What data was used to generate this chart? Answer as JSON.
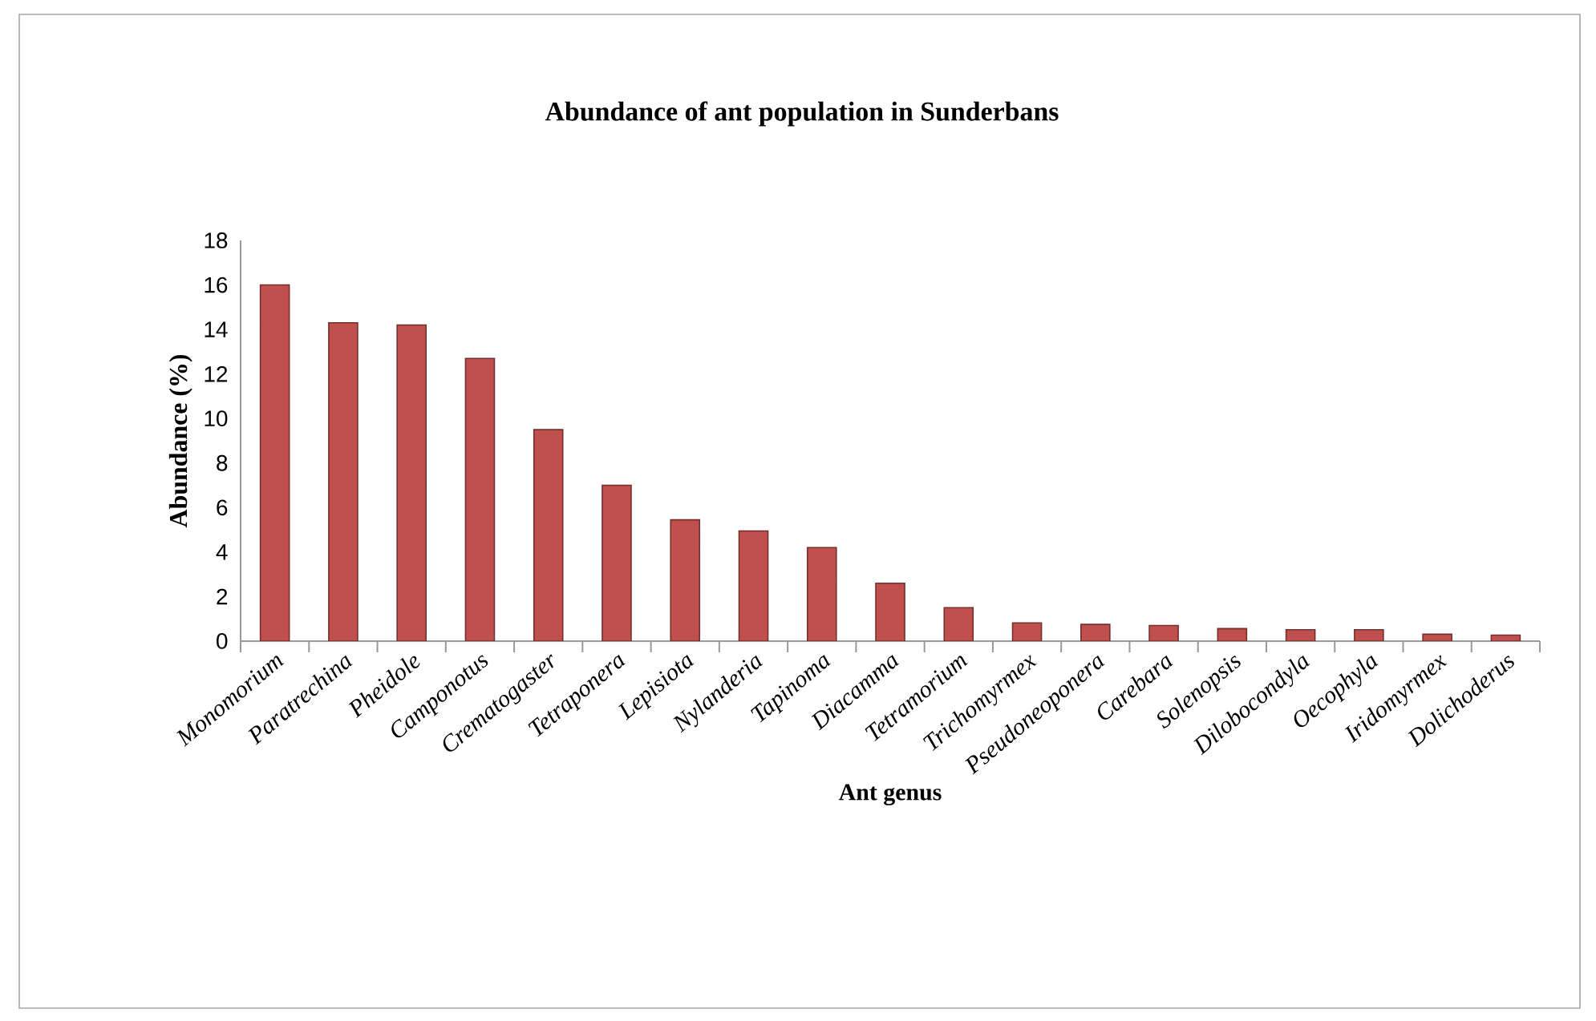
{
  "chart_data": {
    "type": "bar",
    "title": "Abundance of ant population in Sunderbans",
    "xlabel": "Ant genus",
    "ylabel": "Abundance (%)",
    "categories": [
      "Monomorium",
      "Paratrechina",
      "Pheidole",
      "Camponotus",
      "Crematogaster",
      "Tetraponera",
      "Lepisiota",
      "Nylanderia",
      "Tapinoma",
      "Diacamma",
      "Tetramorium",
      "Trichomyrmex",
      "Pseudoneoponera",
      "Carebara",
      "Solenopsis",
      "Dilobocondyla",
      "Oecophyla",
      "Iridomyrmex",
      "Dolichoderus"
    ],
    "values": [
      16.0,
      14.3,
      14.2,
      12.7,
      9.5,
      7.0,
      5.45,
      4.95,
      4.2,
      2.6,
      1.5,
      0.82,
      0.75,
      0.7,
      0.56,
      0.51,
      0.51,
      0.31,
      0.27
    ],
    "color": "#c0504d",
    "ylim": [
      0,
      18
    ],
    "yticks": [
      0,
      2,
      4,
      6,
      8,
      10,
      12,
      14,
      16,
      18
    ],
    "grid": false
  }
}
